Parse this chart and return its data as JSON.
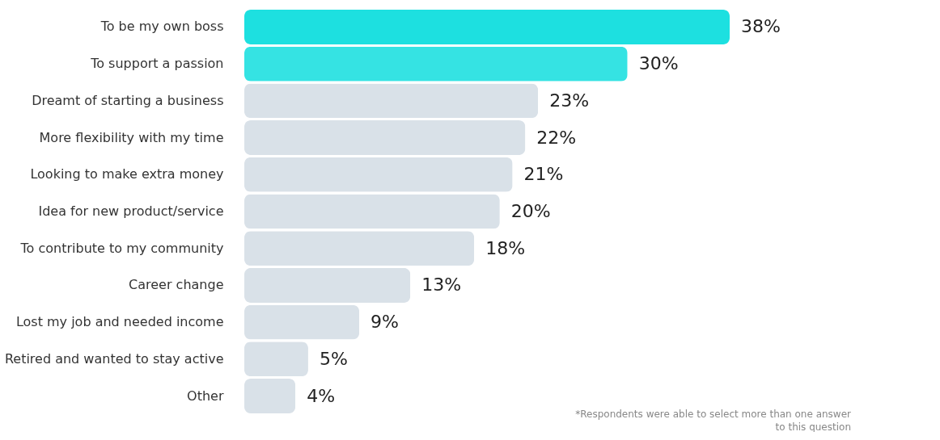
{
  "chart_data": {
    "type": "bar",
    "orientation": "horizontal",
    "categories": [
      "To be my own boss",
      "To support a passion",
      "Dreamt of starting a business",
      "More flexibility with my time",
      "Looking to make extra money",
      "Idea for new product/service",
      "To contribute to my community",
      "Career change",
      "Lost my job and needed income",
      "Retired and wanted to stay active",
      "Other"
    ],
    "values": [
      38,
      30,
      23,
      22,
      21,
      20,
      18,
      13,
      9,
      5,
      4
    ],
    "colors": [
      "#1de0e0",
      "#35e3e3",
      "#d9e1e8",
      "#d9e1e8",
      "#d9e1e8",
      "#d9e1e8",
      "#d9e1e8",
      "#d9e1e8",
      "#d9e1e8",
      "#d9e1e8",
      "#d9e1e8"
    ],
    "value_labels": [
      "38%",
      "30%",
      "23%",
      "22%",
      "21%",
      "20%",
      "18%",
      "13%",
      "9%",
      "5%",
      "4%"
    ],
    "annotations": [
      "*Respondents were able to select more than one answer to this question"
    ]
  }
}
